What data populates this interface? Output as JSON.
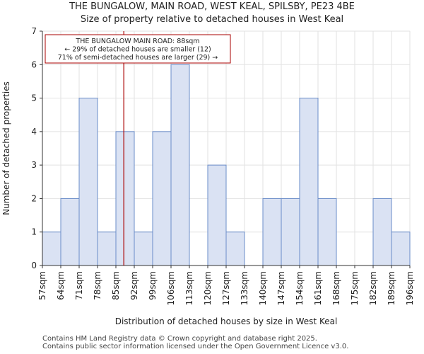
{
  "title_line1": "THE BUNGALOW, MAIN ROAD, WEST KEAL, SPILSBY, PE23 4BE",
  "title_line2": "Size of property relative to detached houses in West Keal",
  "footer_line1": "Contains HM Land Registry data © Crown copyright and database right 2025.",
  "footer_line2": "Contains public sector information licensed under the Open Government Licence v3.0.",
  "colors": {
    "bar_fill": "#dae2f3",
    "bar_edge": "#6a8cc8",
    "marker": "#aa0000",
    "grid": "#e2e2e2"
  },
  "chart_data": {
    "type": "histogram",
    "xlabel": "Distribution of detached houses by size in West Keal",
    "ylabel": "Number of detached properties",
    "ylim": [
      0,
      7
    ],
    "yticks": [
      "0",
      "1",
      "2",
      "3",
      "4",
      "5",
      "6",
      "7"
    ],
    "bin_labels": [
      "57sqm",
      "64sqm",
      "71sqm",
      "78sqm",
      "85sqm",
      "92sqm",
      "99sqm",
      "106sqm",
      "113sqm",
      "120sqm",
      "127sqm",
      "133sqm",
      "140sqm",
      "147sqm",
      "154sqm",
      "161sqm",
      "168sqm",
      "175sqm",
      "182sqm",
      "189sqm",
      "196sqm"
    ],
    "values": [
      1,
      2,
      5,
      1,
      4,
      1,
      4,
      6,
      0,
      3,
      1,
      0,
      2,
      2,
      5,
      2,
      0,
      0,
      2,
      1
    ],
    "marker_value_bins": 4.43,
    "annotation": {
      "line1": "THE BUNGALOW MAIN ROAD: 88sqm",
      "line2": "← 29% of detached houses are smaller (12)",
      "line3": "71% of semi-detached houses are larger (29) →"
    }
  }
}
